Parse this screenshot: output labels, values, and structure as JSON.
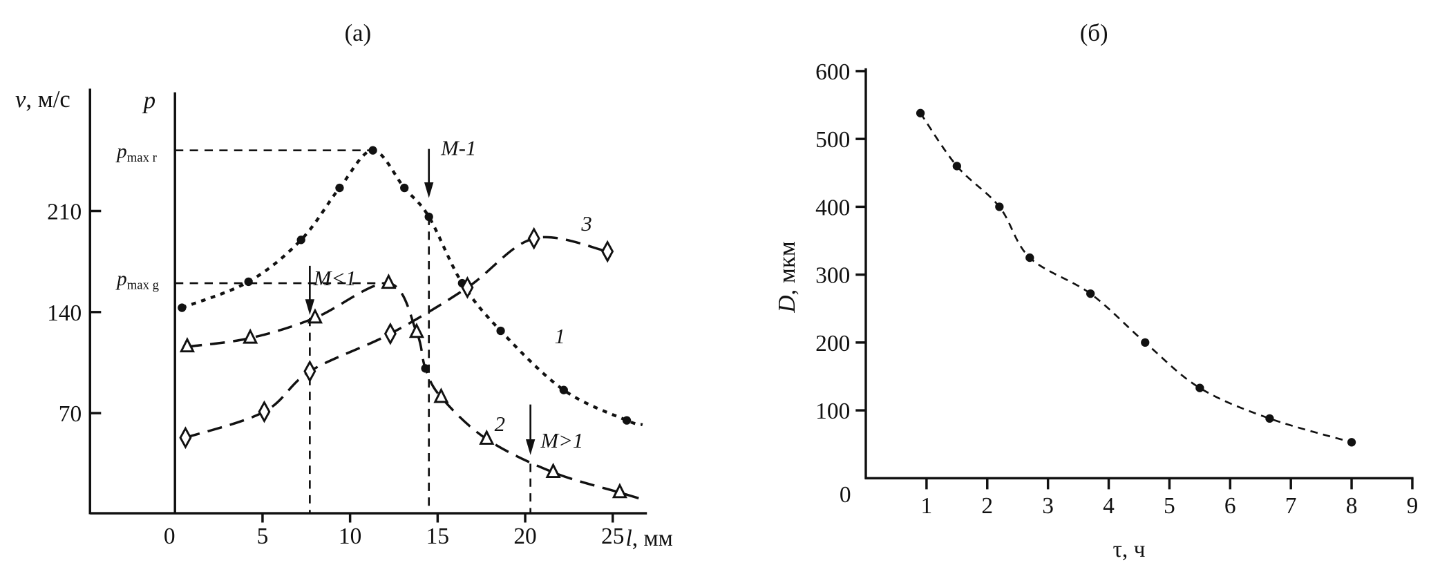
{
  "chart_data": [
    {
      "panel": "(а)",
      "type": "line",
      "title": "(а)",
      "xlabel": "l, мм",
      "xlabel_var": "l",
      "xlabel_unit": ", мм",
      "ylabel": "v, м/с",
      "ylabel_var": "v",
      "ylabel_unit": ", м/с",
      "y2label": "p",
      "xlim": [
        -4.8,
        27
      ],
      "ylim": [
        0,
        300
      ],
      "xticks": [
        0,
        5,
        10,
        15,
        20,
        25
      ],
      "yticks": [
        70,
        140,
        210
      ],
      "grid": false,
      "levels": [
        {
          "label_main": "p",
          "label_sub": "max r",
          "value": 252,
          "until_x": 11.3
        },
        {
          "label_main": "p",
          "label_sub": "max g",
          "value": 160,
          "until_x": 12.2
        }
      ],
      "markers": [
        {
          "label": "M<1",
          "x": 7.7,
          "arrow_from": 172,
          "arrow_to": 138,
          "drop_from": 136
        },
        {
          "label": "M-1",
          "x": 14.5,
          "arrow_from": 253,
          "arrow_to": 219,
          "drop_from": 206
        },
        {
          "label": "M>1",
          "x": 20.3,
          "arrow_from": 76,
          "arrow_to": 41,
          "drop_from": 35
        }
      ],
      "series": [
        {
          "name": "1",
          "marker": "dot",
          "dash": "dotted",
          "x": [
            0.4,
            4.2,
            7.2,
            9.4,
            11.3,
            13.1,
            14.5,
            16.4,
            18.6,
            22.2,
            25.8,
            26.7
          ],
          "y": [
            143,
            161,
            190,
            226,
            252,
            226,
            206,
            160,
            127,
            86,
            65,
            62
          ],
          "marked": [
            true,
            true,
            true,
            true,
            true,
            true,
            true,
            true,
            true,
            true,
            true,
            false
          ]
        },
        {
          "name": "2",
          "marker": "triangle",
          "dash": "long-dash",
          "x": [
            0.7,
            4.3,
            8.0,
            12.2,
            13.8,
            14.3,
            15.2,
            17.8,
            21.6,
            25.4,
            26.5
          ],
          "y": [
            116,
            122,
            136,
            160,
            126,
            101,
            81,
            52,
            29,
            15,
            11
          ],
          "marked": [
            true,
            true,
            true,
            true,
            true,
            "dot",
            true,
            true,
            true,
            true,
            false
          ]
        },
        {
          "name": "3",
          "marker": "diamond",
          "dash": "long-dash",
          "x": [
            0.6,
            5.1,
            7.7,
            12.3,
            16.7,
            20.5,
            24.7
          ],
          "y": [
            53,
            71,
            99,
            125,
            157,
            191,
            182
          ],
          "marked": [
            true,
            true,
            true,
            true,
            true,
            true,
            true
          ]
        }
      ]
    },
    {
      "panel": "(б)",
      "type": "line",
      "title": "(б)",
      "xlabel": "τ, ч",
      "ylabel": "D, мкм",
      "ylabel_var": "D",
      "ylabel_unit": ", мкм",
      "xlim": [
        0,
        9
      ],
      "ylim": [
        0,
        600
      ],
      "xticks": [
        1,
        2,
        3,
        4,
        5,
        6,
        7,
        8,
        9
      ],
      "yticks": [
        0,
        100,
        200,
        300,
        400,
        500,
        600
      ],
      "grid": false,
      "series": [
        {
          "name": "D",
          "marker": "dot",
          "dash": "dashed",
          "x": [
            0.9,
            1.5,
            2.2,
            2.7,
            3.7,
            4.6,
            5.5,
            6.65,
            8.0
          ],
          "y": [
            538,
            460,
            400,
            325,
            272,
            200,
            133,
            88,
            53
          ]
        }
      ]
    }
  ]
}
